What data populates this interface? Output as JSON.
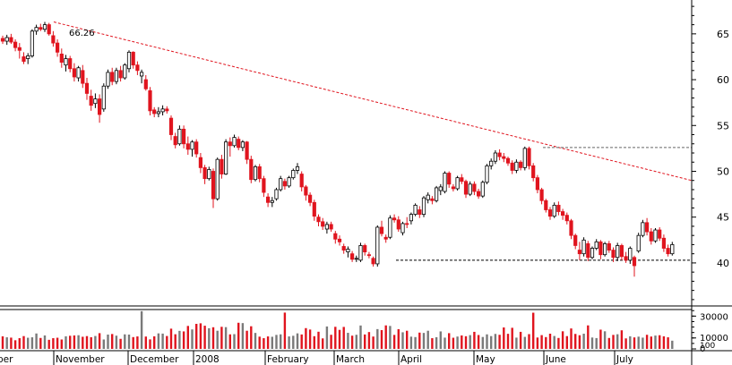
{
  "chart_data": [
    {
      "type": "candlestick",
      "x_labels": [
        "ber",
        "November",
        "December",
        "2008",
        "February",
        "March",
        "April",
        "May",
        "June",
        "July"
      ],
      "y_ticks": [
        40,
        45,
        50,
        55,
        60,
        65
      ],
      "ylim": [
        35.5,
        68.5
      ],
      "annotations": [
        "66.26"
      ],
      "trendline": {
        "from": [
          60,
          66.3
        ],
        "to": [
          772,
          49.0
        ]
      },
      "support_line": {
        "from": [
          442,
          40.3
        ],
        "to": [
          772,
          40.3
        ]
      },
      "resistance_line": {
        "from": [
          606,
          52.6
        ],
        "to": [
          772,
          52.6
        ]
      },
      "candles": [
        [
          64.5,
          64.8,
          63.9,
          64.2
        ],
        [
          64.2,
          64.9,
          63.8,
          64.6
        ],
        [
          64.6,
          65.0,
          63.9,
          64.1
        ],
        [
          64.1,
          64.4,
          63.1,
          63.5
        ],
        [
          63.5,
          64.0,
          62.3,
          63.2
        ],
        [
          62.5,
          63.0,
          61.7,
          62.0
        ],
        [
          62.3,
          62.9,
          61.7,
          62.6
        ],
        [
          62.6,
          65.5,
          62.4,
          65.3
        ],
        [
          65.3,
          66.0,
          64.9,
          65.7
        ],
        [
          65.7,
          66.1,
          65.3,
          65.5
        ],
        [
          65.5,
          66.3,
          65.2,
          66.0
        ],
        [
          66.0,
          66.2,
          64.8,
          65.0
        ],
        [
          64.8,
          65.3,
          63.6,
          64.0
        ],
        [
          64.0,
          64.4,
          62.5,
          63.0
        ],
        [
          62.8,
          63.4,
          61.3,
          61.9
        ],
        [
          61.6,
          62.7,
          60.9,
          62.3
        ],
        [
          62.3,
          62.6,
          60.8,
          61.2
        ],
        [
          61.2,
          61.8,
          59.8,
          60.3
        ],
        [
          60.2,
          61.5,
          59.8,
          61.3
        ],
        [
          61.0,
          61.6,
          59.1,
          59.6
        ],
        [
          59.6,
          60.2,
          57.8,
          58.5
        ],
        [
          58.2,
          58.9,
          56.6,
          57.2
        ],
        [
          57.4,
          58.5,
          56.9,
          57.9
        ],
        [
          57.9,
          58.4,
          55.3,
          56.2
        ],
        [
          56.8,
          59.6,
          56.5,
          59.3
        ],
        [
          59.3,
          61.1,
          59.0,
          60.8
        ],
        [
          60.8,
          61.3,
          59.4,
          59.8
        ],
        [
          59.8,
          61.3,
          59.5,
          61.0
        ],
        [
          61.0,
          61.5,
          59.8,
          60.2
        ],
        [
          60.2,
          61.8,
          60.0,
          61.6
        ],
        [
          61.2,
          63.2,
          60.8,
          63.0
        ],
        [
          63.0,
          63.1,
          61.2,
          61.6
        ],
        [
          61.6,
          62.0,
          60.5,
          61.0
        ],
        [
          60.4,
          61.1,
          59.6,
          60.8
        ],
        [
          60.0,
          60.5,
          58.8,
          59.0
        ],
        [
          58.8,
          59.2,
          56.1,
          56.6
        ],
        [
          56.7,
          57.0,
          55.9,
          56.3
        ],
        [
          56.3,
          57.0,
          55.9,
          56.5
        ],
        [
          56.5,
          57.2,
          56.1,
          56.8
        ],
        [
          56.8,
          57.1,
          56.3,
          56.6
        ],
        [
          55.8,
          56.1,
          53.4,
          54.0
        ],
        [
          53.8,
          54.2,
          52.5,
          52.9
        ],
        [
          53.0,
          55.0,
          52.8,
          54.6
        ],
        [
          54.6,
          55.0,
          52.5,
          53.0
        ],
        [
          53.0,
          53.8,
          51.8,
          52.4
        ],
        [
          52.4,
          53.4,
          51.6,
          53.2
        ],
        [
          53.2,
          53.5,
          51.5,
          51.9
        ],
        [
          51.5,
          52.0,
          49.8,
          50.4
        ],
        [
          50.4,
          50.7,
          48.6,
          49.2
        ],
        [
          49.2,
          50.5,
          49.0,
          50.2
        ],
        [
          50.0,
          50.3,
          46.0,
          47.0
        ],
        [
          47.0,
          51.5,
          46.8,
          51.3
        ],
        [
          51.3,
          51.8,
          49.2,
          49.7
        ],
        [
          49.7,
          53.5,
          49.6,
          53.2
        ],
        [
          53.2,
          53.7,
          51.6,
          52.8
        ],
        [
          52.8,
          54.0,
          52.6,
          53.7
        ],
        [
          53.5,
          53.8,
          52.3,
          52.6
        ],
        [
          52.6,
          53.4,
          52.2,
          53.2
        ],
        [
          53.2,
          53.3,
          50.8,
          51.3
        ],
        [
          51.3,
          51.7,
          48.7,
          49.1
        ],
        [
          49.1,
          50.7,
          48.9,
          50.5
        ],
        [
          50.5,
          50.8,
          48.8,
          49.2
        ],
        [
          49.2,
          49.5,
          47.2,
          47.7
        ],
        [
          47.2,
          47.6,
          46.1,
          46.6
        ],
        [
          46.6,
          47.2,
          46.1,
          46.8
        ],
        [
          47.0,
          48.2,
          46.8,
          48.0
        ],
        [
          48.0,
          49.5,
          47.8,
          49.2
        ],
        [
          48.9,
          49.2,
          48.0,
          48.4
        ],
        [
          48.4,
          49.5,
          48.2,
          49.3
        ],
        [
          49.3,
          50.3,
          49.1,
          50.1
        ],
        [
          50.1,
          50.9,
          49.7,
          50.5
        ],
        [
          49.7,
          50.0,
          47.8,
          48.3
        ],
        [
          48.3,
          48.5,
          46.8,
          47.4
        ],
        [
          47.4,
          47.7,
          46.2,
          46.6
        ],
        [
          46.6,
          46.9,
          44.6,
          45.1
        ],
        [
          45.0,
          45.3,
          44.0,
          44.5
        ],
        [
          44.5,
          44.9,
          43.6,
          44.0
        ],
        [
          43.7,
          44.5,
          43.2,
          44.2
        ],
        [
          44.2,
          44.5,
          43.4,
          43.7
        ],
        [
          43.2,
          43.5,
          42.1,
          42.6
        ],
        [
          42.6,
          43.0,
          41.9,
          42.3
        ],
        [
          41.8,
          42.1,
          41.0,
          41.4
        ],
        [
          41.2,
          41.8,
          40.6,
          41.5
        ],
        [
          41.0,
          41.3,
          40.1,
          40.4
        ],
        [
          40.4,
          40.8,
          40.1,
          40.5
        ],
        [
          40.3,
          42.2,
          40.1,
          41.9
        ],
        [
          41.9,
          42.1,
          40.8,
          41.2
        ],
        [
          40.9,
          41.2,
          40.5,
          40.8
        ],
        [
          40.5,
          40.7,
          39.6,
          39.9
        ],
        [
          39.9,
          44.1,
          39.6,
          43.9
        ],
        [
          43.9,
          44.6,
          42.9,
          43.2
        ],
        [
          42.8,
          43.1,
          42.2,
          42.6
        ],
        [
          42.8,
          45.2,
          42.6,
          44.9
        ],
        [
          44.9,
          45.3,
          44.4,
          44.7
        ],
        [
          44.7,
          45.1,
          43.4,
          43.7
        ],
        [
          43.3,
          44.5,
          43.0,
          44.3
        ],
        [
          44.3,
          45.0,
          43.8,
          44.2
        ],
        [
          44.6,
          45.5,
          44.2,
          45.3
        ],
        [
          45.3,
          46.5,
          45.1,
          46.3
        ],
        [
          45.8,
          46.2,
          44.9,
          45.3
        ],
        [
          45.3,
          47.3,
          45.0,
          47.1
        ],
        [
          46.9,
          47.7,
          46.5,
          47.4
        ],
        [
          47.0,
          47.3,
          46.4,
          46.8
        ],
        [
          46.8,
          48.4,
          46.6,
          48.2
        ],
        [
          47.9,
          48.6,
          47.4,
          48.3
        ],
        [
          47.8,
          50.0,
          47.6,
          49.8
        ],
        [
          49.8,
          50.0,
          48.2,
          48.6
        ],
        [
          48.3,
          48.6,
          47.8,
          48.1
        ],
        [
          48.1,
          49.5,
          47.9,
          49.3
        ],
        [
          49.3,
          49.7,
          48.6,
          48.9
        ],
        [
          48.9,
          49.1,
          47.1,
          47.5
        ],
        [
          47.5,
          48.9,
          47.3,
          48.6
        ],
        [
          48.6,
          48.9,
          47.4,
          47.8
        ],
        [
          47.8,
          48.1,
          47.0,
          47.3
        ],
        [
          47.3,
          49.0,
          47.1,
          48.8
        ],
        [
          48.8,
          50.8,
          48.6,
          50.6
        ],
        [
          50.6,
          51.4,
          50.2,
          51.1
        ],
        [
          51.1,
          52.3,
          50.8,
          52.0
        ],
        [
          52.0,
          52.4,
          51.2,
          51.6
        ],
        [
          51.6,
          52.0,
          51.0,
          51.4
        ],
        [
          51.4,
          51.6,
          50.6,
          50.9
        ],
        [
          50.9,
          51.2,
          49.7,
          50.1
        ],
        [
          50.1,
          51.3,
          49.8,
          51.0
        ],
        [
          51.0,
          51.2,
          50.1,
          50.4
        ],
        [
          50.4,
          52.7,
          50.1,
          52.5
        ],
        [
          52.5,
          52.7,
          50.2,
          50.6
        ],
        [
          50.6,
          50.9,
          48.9,
          49.3
        ],
        [
          49.3,
          49.6,
          47.6,
          48.0
        ],
        [
          48.0,
          48.2,
          46.4,
          46.8
        ],
        [
          46.8,
          47.0,
          45.5,
          45.8
        ],
        [
          45.8,
          46.1,
          44.7,
          45.1
        ],
        [
          45.1,
          46.6,
          44.9,
          46.3
        ],
        [
          46.3,
          46.7,
          45.2,
          45.6
        ],
        [
          45.6,
          45.9,
          44.7,
          45.2
        ],
        [
          45.2,
          45.5,
          44.2,
          44.6
        ],
        [
          44.6,
          44.8,
          42.6,
          43.0
        ],
        [
          43.0,
          43.2,
          41.5,
          41.9
        ],
        [
          41.4,
          42.3,
          40.3,
          41.0
        ],
        [
          41.0,
          42.8,
          40.7,
          42.5
        ],
        [
          42.1,
          42.4,
          40.2,
          40.6
        ],
        [
          40.6,
          41.8,
          40.4,
          41.6
        ],
        [
          41.6,
          42.6,
          41.4,
          42.3
        ],
        [
          42.3,
          42.5,
          40.4,
          40.9
        ],
        [
          40.9,
          42.3,
          40.7,
          42.1
        ],
        [
          42.1,
          42.4,
          41.1,
          41.4
        ],
        [
          41.4,
          41.7,
          40.1,
          40.6
        ],
        [
          40.6,
          42.2,
          40.2,
          41.9
        ],
        [
          41.9,
          42.1,
          40.3,
          40.7
        ],
        [
          40.7,
          41.2,
          40.0,
          40.3
        ],
        [
          40.3,
          41.8,
          39.9,
          41.6
        ],
        [
          40.6,
          40.8,
          38.5,
          39.7
        ],
        [
          41.3,
          43.3,
          41.1,
          43.0
        ],
        [
          43.0,
          44.7,
          42.8,
          44.4
        ],
        [
          44.4,
          44.9,
          43.0,
          43.4
        ],
        [
          43.4,
          43.8,
          42.0,
          42.4
        ],
        [
          42.4,
          43.8,
          42.2,
          43.6
        ],
        [
          43.6,
          43.9,
          42.4,
          42.7
        ],
        [
          42.7,
          43.1,
          41.2,
          41.6
        ],
        [
          41.6,
          42.0,
          40.7,
          41.0
        ],
        [
          41.0,
          42.3,
          40.8,
          42.0
        ]
      ],
      "volumes": [
        11500,
        10600,
        10300,
        7900,
        9800,
        11700,
        10200,
        10600,
        14100,
        10000,
        12300,
        8300,
        9800,
        10200,
        8600,
        11500,
        12000,
        12300,
        12500,
        11100,
        11700,
        10700,
        11800,
        14400,
        8600,
        13100,
        13600,
        12100,
        9200,
        13300,
        13100,
        10800,
        11400,
        34500,
        11300,
        8700,
        11500,
        14200,
        14000,
        11800,
        18500,
        13400,
        16500,
        16000,
        21000,
        17800,
        22900,
        23400,
        21200,
        18900,
        19800,
        16600,
        20200,
        19900,
        13300,
        13500,
        23900,
        23600,
        16600,
        20700,
        14600,
        11200,
        9800,
        11400,
        11100,
        12800,
        13300,
        33200,
        11400,
        12000,
        14200,
        13200,
        19000,
        17700,
        11600,
        15700,
        9600,
        20500,
        12900,
        20200,
        17400,
        20100,
        14700,
        12100,
        12900,
        21400,
        13200,
        15400,
        11300,
        18100,
        17200,
        21500,
        21000,
        12800,
        18000,
        15200,
        16600,
        11200,
        10800,
        14900,
        14600,
        16600,
        9800,
        10700,
        16000,
        10300,
        14400,
        10200,
        11300,
        12300,
        11600,
        12600,
        15600,
        12700,
        10900,
        13300,
        11700,
        13700,
        12900,
        19600,
        13800,
        19300,
        10300,
        15600,
        11000,
        13500,
        33100,
        10400,
        12600,
        10800,
        13900,
        11800,
        10000,
        16100,
        11700,
        18700,
        13700,
        12500,
        13900,
        21500,
        10400,
        9900,
        17600,
        16100,
        10000,
        12800,
        13400,
        17000,
        9600,
        11500,
        10500,
        11200,
        10300,
        12900,
        11300,
        12200,
        12500,
        11500,
        10600,
        7500
      ],
      "volume_ticks": [
        "30000",
        "10000",
        "0",
        "100"
      ],
      "bull_color": "#000000",
      "bear_color": "#e0141e"
    }
  ]
}
